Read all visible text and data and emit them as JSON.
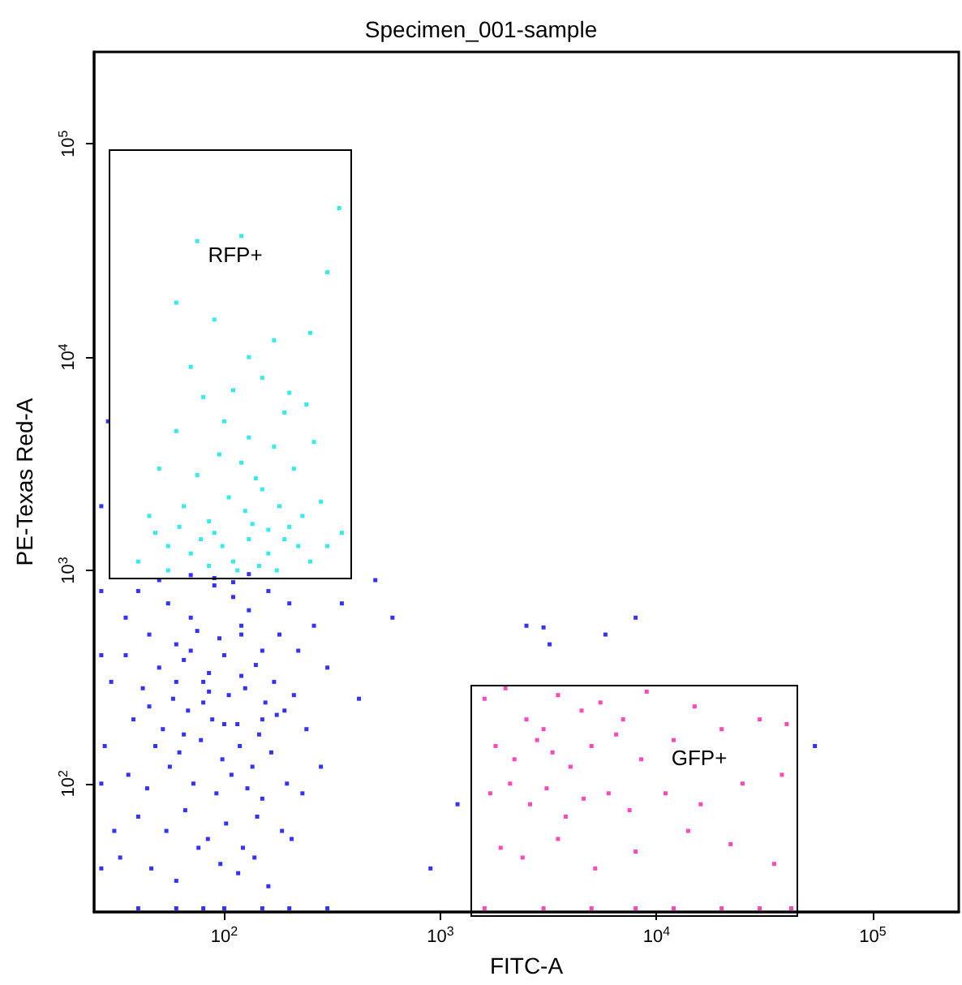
{
  "chart_data": {
    "type": "scatter",
    "title": "Specimen_001-sample",
    "xlabel": "FITC-A",
    "ylabel": "PE-Texas Red-A",
    "log": "xy",
    "grid": false,
    "marker": "square",
    "xlim": [
      25,
      250000
    ],
    "ylim": [
      25,
      270000
    ],
    "xticks": [
      {
        "value": 100,
        "label": "10$^{2}$"
      },
      {
        "value": 1000,
        "label": "10$^{3}$"
      },
      {
        "value": 10000,
        "label": "10$^{4}$"
      },
      {
        "value": 100000,
        "label": "10$^{5}$"
      }
    ],
    "yticks": [
      {
        "value": 100,
        "label": "10$^{2}$"
      },
      {
        "value": 1000,
        "label": "10$^{3}$"
      },
      {
        "value": 10000,
        "label": "10$^{4}$"
      },
      {
        "value": 100000,
        "label": "10$^{5}$"
      }
    ],
    "annotations": [
      "RFP+",
      "GFP+"
    ],
    "series": [
      {
        "color": "#0000ff",
        "x": [
          40,
          55,
          70,
          90,
          110,
          130,
          160,
          200,
          45,
          60,
          75,
          95,
          120,
          150,
          180,
          35,
          50,
          65,
          85,
          100,
          140,
          170,
          220,
          260,
          42,
          58,
          80,
          105,
          125,
          155,
          190,
          38,
          52,
          68,
          88,
          115,
          145,
          175,
          210,
          48,
          62,
          78,
          98,
          118,
          135,
          165,
          240,
          300,
          36,
          44,
          56,
          72,
          92,
          108,
          128,
          150,
          195,
          230,
          40,
          54,
          66,
          84,
          102,
          122,
          142,
          185,
          280,
          33,
          46,
          60,
          76,
          96,
          116,
          138,
          160,
          205,
          50,
          70,
          90,
          110,
          130,
          60,
          80,
          100,
          45,
          65,
          85,
          120,
          150,
          35,
          30,
          28,
          27,
          29,
          31,
          500,
          600,
          350,
          420,
          900,
          1200,
          2500,
          3200,
          3000,
          5800,
          8000,
          54000,
          40,
          80,
          150,
          60,
          100,
          200,
          120,
          70,
          27,
          27,
          27,
          27,
          300
        ],
        "values": [
          800,
          700,
          600,
          850,
          750,
          650,
          800,
          700,
          500,
          450,
          520,
          480,
          550,
          420,
          500,
          400,
          350,
          380,
          330,
          400,
          360,
          300,
          420,
          550,
          280,
          250,
          300,
          260,
          280,
          240,
          220,
          200,
          180,
          220,
          200,
          190,
          170,
          210,
          260,
          150,
          140,
          160,
          130,
          150,
          120,
          140,
          180,
          350,
          110,
          95,
          120,
          100,
          90,
          110,
          95,
          85,
          100,
          90,
          70,
          60,
          75,
          55,
          65,
          50,
          70,
          60,
          120,
          45,
          40,
          35,
          50,
          42,
          38,
          45,
          33,
          55,
          900,
          950,
          920,
          880,
          960,
          300,
          240,
          190,
          230,
          170,
          270,
          320,
          200,
          600,
          300,
          150,
          2000,
          5000,
          60,
          900,
          600,
          700,
          250,
          40,
          80,
          550,
          450,
          540,
          500,
          600,
          150,
          26,
          26,
          26,
          26,
          26,
          26,
          500,
          420,
          800,
          400,
          100,
          40,
          26
        ]
      },
      {
        "color": "#00e8e8",
        "x": [
          40,
          55,
          70,
          90,
          110,
          130,
          160,
          200,
          250,
          300,
          45,
          65,
          85,
          105,
          125,
          150,
          180,
          230,
          280,
          350,
          50,
          75,
          95,
          120,
          140,
          170,
          210,
          260,
          60,
          100,
          130,
          190,
          240,
          80,
          110,
          150,
          200,
          70,
          130,
          170,
          250,
          90,
          60,
          300,
          75,
          120,
          340,
          55,
          85,
          115,
          145,
          175,
          220,
          48,
          62,
          78,
          98,
          135,
          160,
          190
        ],
        "values": [
          1100,
          1300,
          1200,
          1500,
          1100,
          1400,
          1200,
          1600,
          1100,
          1300,
          1800,
          2000,
          1700,
          2200,
          1900,
          2400,
          2000,
          1800,
          2100,
          1500,
          3000,
          2800,
          3500,
          3200,
          2700,
          3800,
          3000,
          4000,
          4500,
          5000,
          4200,
          5500,
          6000,
          6500,
          7000,
          8000,
          6800,
          9000,
          10000,
          12000,
          13000,
          15000,
          18000,
          25000,
          35000,
          37000,
          50000,
          1000,
          1050,
          1000,
          1050,
          1000,
          1300,
          1500,
          1600,
          1400,
          1300,
          1650,
          1550,
          1400
        ]
      },
      {
        "color": "#ff1aa8",
        "x": [
          1600,
          2000,
          2500,
          3000,
          3500,
          4500,
          5500,
          7000,
          9000,
          15000,
          1800,
          2200,
          2800,
          3300,
          4000,
          5000,
          6500,
          8500,
          12000,
          20000,
          30000,
          40000,
          1700,
          2100,
          2600,
          3100,
          3800,
          4600,
          6000,
          7500,
          11000,
          16000,
          25000,
          38000,
          1900,
          2400,
          3500,
          5200,
          8000,
          14000,
          22000,
          35000,
          1600,
          3000,
          5000,
          8000,
          12000,
          20000,
          30000,
          42000
        ],
        "values": [
          250,
          280,
          200,
          180,
          260,
          220,
          240,
          200,
          270,
          230,
          150,
          130,
          160,
          140,
          120,
          150,
          170,
          130,
          160,
          180,
          200,
          190,
          90,
          100,
          80,
          95,
          70,
          85,
          90,
          75,
          90,
          80,
          100,
          110,
          50,
          45,
          55,
          40,
          48,
          60,
          52,
          42,
          26,
          26,
          26,
          26,
          26,
          26,
          26,
          26
        ]
      }
    ]
  }
}
